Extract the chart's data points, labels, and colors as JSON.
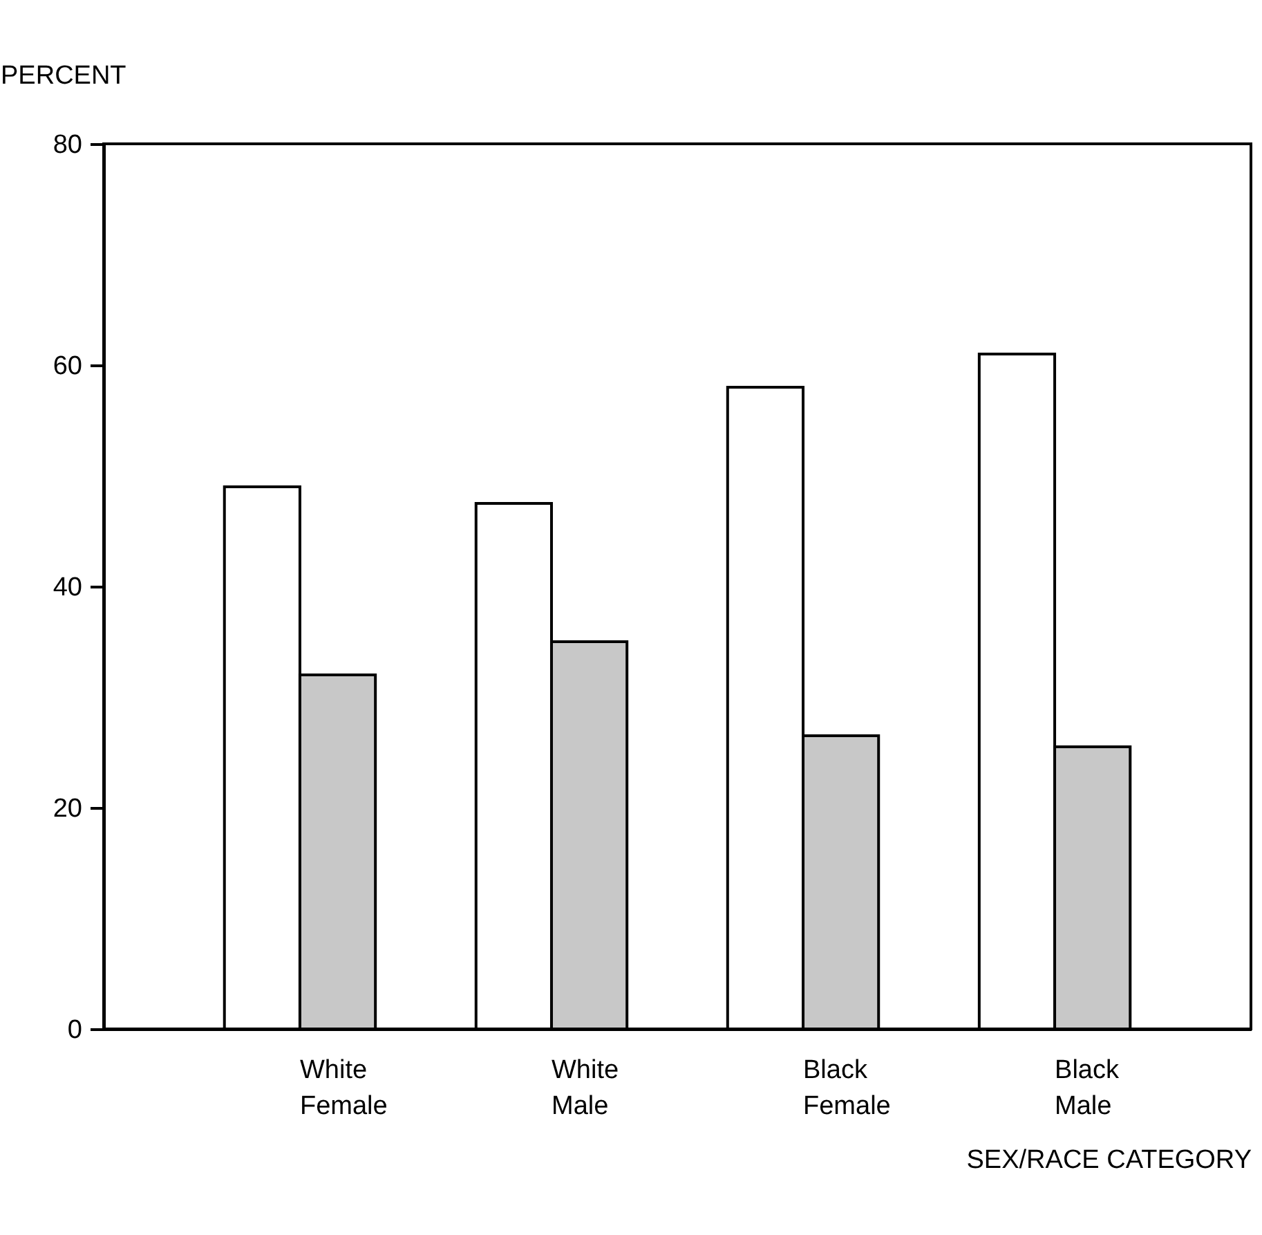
{
  "chart_data": {
    "type": "bar",
    "categories": [
      "White Female",
      "White Male",
      "Black Female",
      "Black Male"
    ],
    "series": [
      {
        "color": "#ffffff",
        "values": [
          49,
          47.5,
          58,
          61
        ]
      },
      {
        "color": "#c8c8c8",
        "values": [
          32,
          35,
          26.5,
          25.5
        ]
      }
    ],
    "ylabel": "PERCENT",
    "xlabel": "SEX/RACE CATEGORY",
    "ylim": [
      0,
      80
    ],
    "yticks": [
      0,
      20,
      40,
      60,
      80
    ],
    "grid": false,
    "legend": false
  }
}
